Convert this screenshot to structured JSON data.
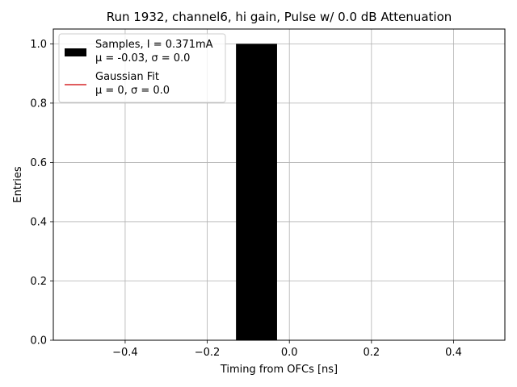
{
  "chart_data": {
    "type": "bar",
    "title": "Run 1932, channel6, hi gain, Pulse w/ 0.0 dB Attenuation",
    "xlabel": "Timing from OFCs [ns]",
    "ylabel": "Entries",
    "xlim": [
      -0.575,
      0.525
    ],
    "ylim": [
      0,
      1.05
    ],
    "grid": true,
    "xticks": [
      -0.4,
      -0.2,
      0.0,
      0.2,
      0.4
    ],
    "xtick_labels": [
      "−0.4",
      "−0.2",
      "0.0",
      "0.2",
      "0.4"
    ],
    "yticks": [
      0.0,
      0.2,
      0.4,
      0.6,
      0.8,
      1.0
    ],
    "ytick_labels": [
      "0.0",
      "0.2",
      "0.4",
      "0.6",
      "0.8",
      "1.0"
    ],
    "bars": [
      {
        "x0": -0.13,
        "x1": -0.03,
        "value": 1.0,
        "color": "#000000"
      }
    ],
    "legend": {
      "placement": "upper-left",
      "entries": [
        {
          "type": "patch",
          "color": "#000000",
          "line1": "Samples, I = 0.371mA",
          "line2": "μ = -0.03, σ = 0.0"
        },
        {
          "type": "line",
          "color": "#d62728",
          "line1": "Gaussian Fit",
          "line2": "μ = 0, σ = 0.0"
        }
      ]
    }
  }
}
